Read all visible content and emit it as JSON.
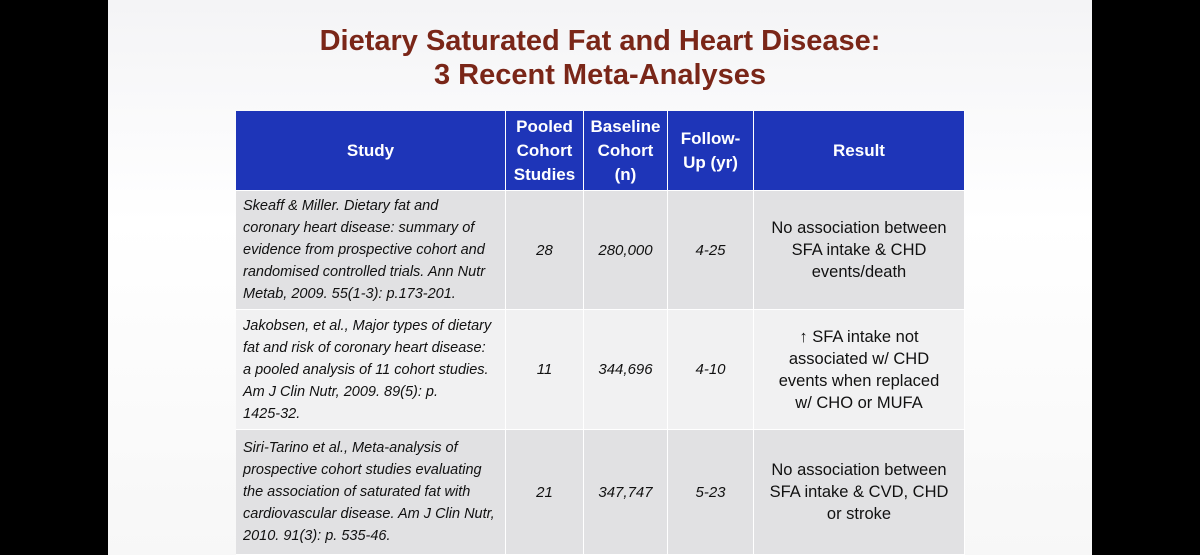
{
  "title": [
    "Dietary Saturated Fat and Heart Disease:",
    "3 Recent Meta-Analyses"
  ],
  "table": {
    "header": [
      [
        "Study"
      ],
      [
        "Pooled",
        "Cohort",
        "Studies"
      ],
      [
        "Baseline",
        "Cohort",
        "(n)"
      ],
      [
        "Follow-",
        "Up (yr)"
      ],
      [
        "Result"
      ]
    ],
    "rows": [
      [
        [
          "Skeaff & Miller. Dietary fat and",
          "coronary heart disease: summary of",
          "evidence from prospective cohort and",
          "randomised controlled trials. Ann Nutr",
          "Metab, 2009. 55(1-3): p.173-201."
        ],
        [
          "28"
        ],
        [
          "280,000"
        ],
        [
          "4-25"
        ],
        [
          "No association between",
          "SFA intake & CHD",
          "events/death"
        ]
      ],
      [
        [
          "Jakobsen, et al., Major types of dietary",
          "fat and risk of coronary heart disease:",
          "a pooled analysis of 11 cohort studies.",
          "Am J Clin Nutr, 2009. 89(5): p.",
          "1425-32."
        ],
        [
          "11"
        ],
        [
          "344,696"
        ],
        [
          "4-10"
        ],
        [
          "↑ SFA intake not",
          "associated w/ CHD",
          "events when replaced",
          "w/ CHO or MUFA"
        ]
      ],
      [
        [
          "Siri-Tarino et al., Meta-analysis of",
          "prospective cohort studies evaluating",
          "the association of saturated fat with",
          "cardiovascular disease. Am J Clin Nutr,",
          "2010. 91(3): p. 535-46."
        ],
        [
          "21"
        ],
        [
          "347,747"
        ],
        [
          "5-23"
        ],
        [
          "No association between",
          "SFA intake & CVD, CHD",
          "or stroke"
        ]
      ]
    ]
  }
}
